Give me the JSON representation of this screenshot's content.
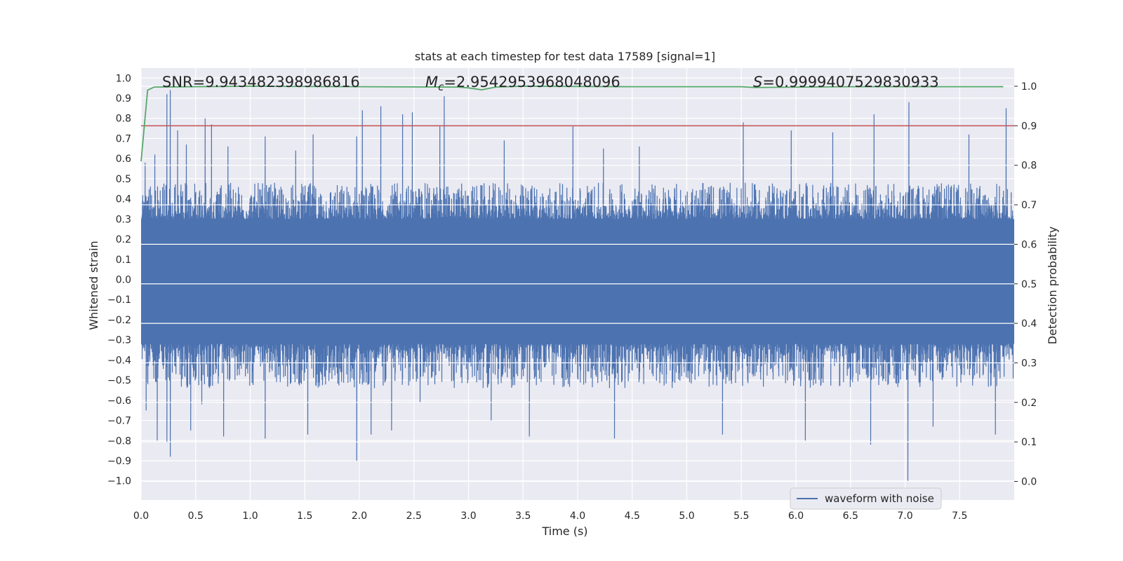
{
  "chart_data": {
    "type": "line",
    "title": "stats at each timestep for test data 17589 [signal=1]",
    "xlabel": "Time (s)",
    "ylabel": "Whitened strain",
    "y2label": "Detection probability",
    "xlim": [
      0.0,
      8.0
    ],
    "ylim": [
      -1.09,
      1.04
    ],
    "y2lim": [
      -0.045,
      1.045
    ],
    "x_ticks": [
      0.0,
      0.5,
      1.0,
      1.5,
      2.0,
      2.5,
      3.0,
      3.5,
      4.0,
      4.5,
      5.0,
      5.5,
      6.0,
      6.5,
      7.0,
      7.5
    ],
    "x_tick_labels": [
      "0.0",
      "0.5",
      "1.0",
      "1.5",
      "2.0",
      "2.5",
      "3.0",
      "3.5",
      "4.0",
      "4.5",
      "5.0",
      "5.5",
      "6.0",
      "6.5",
      "7.0",
      "7.5"
    ],
    "y_ticks": [
      1.0,
      0.9,
      0.8,
      0.7,
      0.6,
      0.5,
      0.4,
      0.3,
      0.2,
      0.1,
      0.0,
      -0.1,
      -0.2,
      -0.3,
      -0.4,
      -0.5,
      -0.6,
      -0.7,
      -0.8,
      -0.9,
      -1.0
    ],
    "y_tick_labels": [
      "1.0",
      "0.9",
      "0.8",
      "0.7",
      "0.6",
      "0.5",
      "0.4",
      "0.3",
      "0.2",
      "0.1",
      "0.0",
      "−0.1",
      "−0.2",
      "−0.3",
      "−0.4",
      "−0.5",
      "−0.6",
      "−0.7",
      "−0.8",
      "−0.9",
      "−1.0"
    ],
    "y2_ticks": [
      1.0,
      0.9,
      0.8,
      0.7,
      0.6,
      0.5,
      0.4,
      0.3,
      0.2,
      0.1,
      0.0
    ],
    "y2_tick_labels": [
      "1.0",
      "0.9",
      "0.8",
      "0.7",
      "0.6",
      "0.5",
      "0.4",
      "0.3",
      "0.2",
      "0.1",
      "0.0"
    ],
    "annotations": {
      "snr": "SNR=9.943482398986816",
      "mc_symbol": "M",
      "mc_sub": "c",
      "mc_value": "=2.9542953968048096",
      "s_symbol": "S",
      "s_value": "=0.9999407529830933"
    },
    "threshold": {
      "y2": 0.9,
      "color": "#c44e52"
    },
    "series": [
      {
        "name": "waveform with noise",
        "axis": "left",
        "color": "#4c72b0",
        "description": "dense noisy whitened strain, ~4096 samples",
        "envelope": {
          "typical_upper": 0.35,
          "typical_lower": -0.4
        },
        "peaks": [
          {
            "x": 0.03,
            "y": 0.58
          },
          {
            "x": 0.12,
            "y": 0.62
          },
          {
            "x": 0.23,
            "y": 0.92
          },
          {
            "x": 0.26,
            "y": 0.94
          },
          {
            "x": 0.33,
            "y": 0.74
          },
          {
            "x": 0.41,
            "y": 0.67
          },
          {
            "x": 0.58,
            "y": 0.8
          },
          {
            "x": 0.64,
            "y": 0.77
          },
          {
            "x": 0.79,
            "y": 0.66
          },
          {
            "x": 1.13,
            "y": 0.71
          },
          {
            "x": 1.41,
            "y": 0.64
          },
          {
            "x": 1.57,
            "y": 0.72
          },
          {
            "x": 1.97,
            "y": 0.71
          },
          {
            "x": 2.02,
            "y": 0.84
          },
          {
            "x": 2.19,
            "y": 0.86
          },
          {
            "x": 2.39,
            "y": 0.82
          },
          {
            "x": 2.48,
            "y": 0.83
          },
          {
            "x": 2.73,
            "y": 0.76
          },
          {
            "x": 2.77,
            "y": 0.91
          },
          {
            "x": 3.32,
            "y": 0.69
          },
          {
            "x": 3.95,
            "y": 0.76
          },
          {
            "x": 4.23,
            "y": 0.65
          },
          {
            "x": 4.56,
            "y": 0.66
          },
          {
            "x": 5.51,
            "y": 0.78
          },
          {
            "x": 5.95,
            "y": 0.74
          },
          {
            "x": 6.33,
            "y": 0.73
          },
          {
            "x": 6.71,
            "y": 0.82
          },
          {
            "x": 7.03,
            "y": 0.88
          },
          {
            "x": 7.58,
            "y": 0.72
          },
          {
            "x": 7.92,
            "y": 0.85
          }
        ],
        "troughs": [
          {
            "x": 0.04,
            "y": -0.65
          },
          {
            "x": 0.14,
            "y": -0.8
          },
          {
            "x": 0.23,
            "y": -0.81
          },
          {
            "x": 0.26,
            "y": -0.88
          },
          {
            "x": 0.45,
            "y": -0.75
          },
          {
            "x": 0.55,
            "y": -0.62
          },
          {
            "x": 0.75,
            "y": -0.78
          },
          {
            "x": 1.13,
            "y": -0.79
          },
          {
            "x": 1.52,
            "y": -0.77
          },
          {
            "x": 1.97,
            "y": -0.9
          },
          {
            "x": 2.1,
            "y": -0.77
          },
          {
            "x": 2.29,
            "y": -0.75
          },
          {
            "x": 2.55,
            "y": -0.61
          },
          {
            "x": 3.2,
            "y": -0.7
          },
          {
            "x": 3.55,
            "y": -0.78
          },
          {
            "x": 4.33,
            "y": -0.79
          },
          {
            "x": 5.32,
            "y": -0.77
          },
          {
            "x": 6.08,
            "y": -0.8
          },
          {
            "x": 6.68,
            "y": -0.82
          },
          {
            "x": 7.02,
            "y": -1.0
          },
          {
            "x": 7.25,
            "y": -0.73
          },
          {
            "x": 7.82,
            "y": -0.77
          }
        ]
      },
      {
        "name": "detection probability",
        "axis": "right",
        "color": "#55a868",
        "x": [
          0.0,
          0.06,
          0.12,
          0.5,
          1.0,
          2.0,
          2.9,
          3.0,
          3.12,
          3.25,
          3.5,
          4.5,
          5.5,
          5.62,
          6.5,
          7.9
        ],
        "values": [
          0.81,
          0.99,
          0.998,
          0.999,
          1.0,
          0.999,
          0.998,
          0.996,
          0.991,
          0.998,
          1.0,
          0.999,
          0.999,
          0.997,
          0.999,
          0.999
        ]
      }
    ],
    "legend": {
      "location": "lower-right",
      "entries": [
        "waveform with noise"
      ]
    },
    "grid": true
  }
}
